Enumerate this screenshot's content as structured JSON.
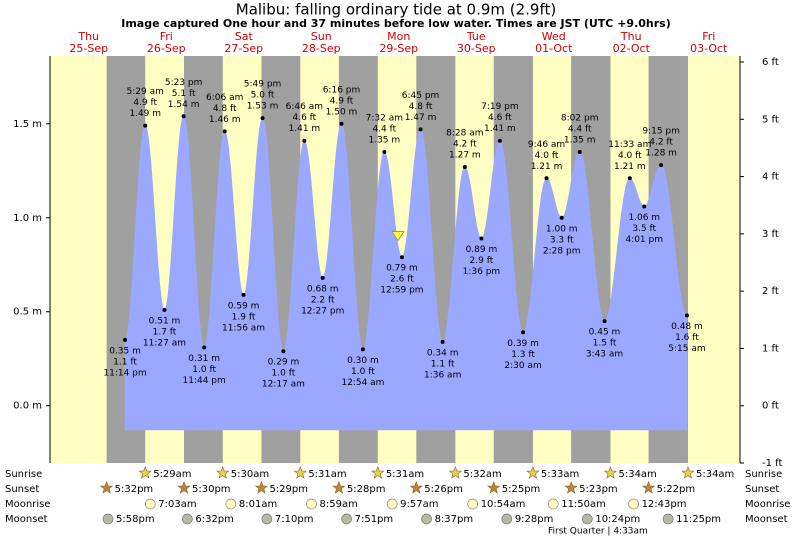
{
  "chart_data": {
    "type": "area",
    "title": "Malibu: falling  ordinary tide at 0.9m (2.9ft)",
    "subtitle": "Image captured One hour and 37 minutes before low water. Times are JST (UTC +9.0hrs)",
    "days": [
      "Thu",
      "Fri",
      "Sat",
      "Sun",
      "Mon",
      "Tue",
      "Wed",
      "Thu",
      "Fri"
    ],
    "dates": [
      "25-Sep",
      "26-Sep",
      "27-Sep",
      "28-Sep",
      "29-Sep",
      "30-Sep",
      "01-Oct",
      "02-Oct",
      "03-Oct"
    ],
    "extremes": {
      "times": [
        "11:14 pm",
        "5:29 am",
        "11:27 am",
        "5:23 pm",
        "11:44 pm",
        "6:06 am",
        "11:56 am",
        "5:49 pm",
        "12:17 am",
        "6:46 am",
        "12:27 pm",
        "6:16 pm",
        "12:54 am",
        "7:32 am",
        "12:59 pm",
        "6:45 pm",
        "1:36 am",
        "8:28 am",
        "1:36 pm",
        "7:19 pm",
        "2:30 am",
        "9:46 am",
        "2:28 pm",
        "8:02 pm",
        "3:43 am",
        "11:33 am",
        "4:01 pm",
        "9:15 pm",
        "5:15 am"
      ],
      "values": [
        0.35,
        1.49,
        0.51,
        1.54,
        0.31,
        1.46,
        0.59,
        1.53,
        0.29,
        1.41,
        0.68,
        1.5,
        0.3,
        1.35,
        0.79,
        1.47,
        0.34,
        1.27,
        0.89,
        1.41,
        0.39,
        1.21,
        1.0,
        1.35,
        0.45,
        1.21,
        1.06,
        1.28,
        0.48
      ],
      "value_labels": [
        "0.35 m",
        "1.49 m",
        "0.51 m",
        "1.54 m",
        "0.31 m",
        "1.46 m",
        "0.59 m",
        "1.53 m",
        "0.29 m",
        "1.41 m",
        "0.68 m",
        "1.50 m",
        "0.30 m",
        "1.35 m",
        "0.79 m",
        "1.47 m",
        "0.34 m",
        "1.27 m",
        "0.89 m",
        "1.41 m",
        "0.39 m",
        "1.21 m",
        "1.00 m",
        "1.35 m",
        "0.45 m",
        "1.21 m",
        "1.06 m",
        "1.28 m",
        "0.48 m"
      ],
      "ft_labels": [
        "1.1 ft",
        "4.9 ft",
        "1.7 ft",
        "5.1 ft",
        "1.0 ft",
        "4.8 ft",
        "1.9 ft",
        "5.0 ft",
        "1.0 ft",
        "4.6 ft",
        "2.2 ft",
        "4.9 ft",
        "1.0 ft",
        "4.4 ft",
        "2.6 ft",
        "4.8 ft",
        "1.1 ft",
        "4.2 ft",
        "2.9 ft",
        "4.6 ft",
        "1.3 ft",
        "4.0 ft",
        "3.3 ft",
        "4.4 ft",
        "1.5 ft",
        "4.0 ft",
        "3.5 ft",
        "4.2 ft",
        "1.6 ft"
      ]
    },
    "color": "#9aa9ff",
    "ylim": [
      -0.3048,
      1.8288
    ],
    "yticks": [
      {
        "value": 0,
        "label": "0.0 m"
      },
      {
        "value": 0.5,
        "label": "0.5 m"
      },
      {
        "value": 1.0,
        "label": "1.0 m"
      },
      {
        "value": 1.5,
        "label": "1.5 m"
      }
    ],
    "y2lim": [
      -1,
      6
    ],
    "y2ticks": [
      {
        "value": -1,
        "label": "-1 ft"
      },
      {
        "value": 0,
        "label": "0 ft"
      },
      {
        "value": 1,
        "label": "1 ft"
      },
      {
        "value": 2,
        "label": "2 ft"
      },
      {
        "value": 3,
        "label": "3 ft"
      },
      {
        "value": 4,
        "label": "4 ft"
      },
      {
        "value": 5,
        "label": "5 ft"
      },
      {
        "value": 6,
        "label": "6 ft"
      }
    ],
    "current_level": 0.9,
    "rows": [
      {
        "name": "Sunrise",
        "times": [
          null,
          "5:29am",
          "5:30am",
          "5:31am",
          "5:31am",
          "5:32am",
          "5:33am",
          "5:34am",
          "5:34am"
        ]
      },
      {
        "name": "Sunset",
        "times": [
          "5:32pm",
          "5:30pm",
          "5:29pm",
          "5:28pm",
          "5:26pm",
          "5:25pm",
          "5:23pm",
          "5:22pm",
          null
        ]
      },
      {
        "name": "Moonrise",
        "times": [
          null,
          "7:03am",
          "8:01am",
          "8:59am",
          "9:57am",
          "10:54am",
          "11:50am",
          "12:43pm",
          null
        ]
      },
      {
        "name": "Moonset",
        "times": [
          "5:58pm",
          "6:32pm",
          "7:10pm",
          "7:51pm",
          "8:37pm",
          "9:28pm",
          "10:24pm",
          "11:25pm",
          null
        ]
      }
    ],
    "moon_phase": "First Quarter | 4:33am"
  }
}
